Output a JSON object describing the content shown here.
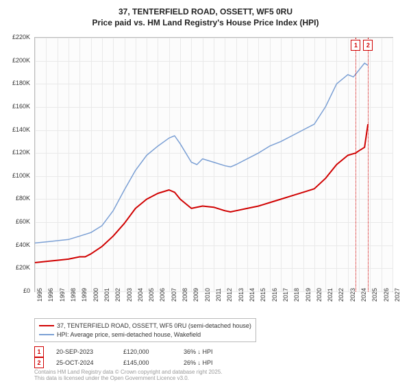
{
  "title_line1": "37, TENTERFIELD ROAD, OSSETT, WF5 0RU",
  "title_line2": "Price paid vs. HM Land Registry's House Price Index (HPI)",
  "chart": {
    "type": "line",
    "background_color": "#fcfcfc",
    "grid_color": "#e9e9e9",
    "border_color": "#bbbbbb",
    "x_range": [
      1995,
      2027
    ],
    "y_range": [
      0,
      220000
    ],
    "y_ticks": [
      0,
      20000,
      40000,
      60000,
      80000,
      100000,
      120000,
      140000,
      160000,
      180000,
      200000,
      220000
    ],
    "y_tick_labels": [
      "£0",
      "£20K",
      "£40K",
      "£60K",
      "£80K",
      "£100K",
      "£120K",
      "£140K",
      "£160K",
      "£180K",
      "£200K",
      "£220K"
    ],
    "x_ticks": [
      1995,
      1996,
      1997,
      1998,
      1999,
      2000,
      2001,
      2002,
      2003,
      2004,
      2005,
      2006,
      2007,
      2008,
      2009,
      2010,
      2011,
      2012,
      2013,
      2014,
      2015,
      2016,
      2017,
      2018,
      2019,
      2020,
      2021,
      2022,
      2023,
      2024,
      2025,
      2026,
      2027
    ],
    "series": [
      {
        "name": "price_paid",
        "label": "37, TENTERFIELD ROAD, OSSETT, WF5 0RU (semi-detached house)",
        "color": "#d00000",
        "line_width": 2,
        "data": [
          [
            1995,
            25000
          ],
          [
            1996,
            26000
          ],
          [
            1997,
            27000
          ],
          [
            1998,
            28000
          ],
          [
            1999,
            30000
          ],
          [
            1999.5,
            30000
          ],
          [
            2000,
            32500
          ],
          [
            2001,
            39000
          ],
          [
            2002,
            48000
          ],
          [
            2003,
            59000
          ],
          [
            2004,
            72000
          ],
          [
            2005,
            80000
          ],
          [
            2006,
            85000
          ],
          [
            2007,
            88000
          ],
          [
            2007.5,
            86000
          ],
          [
            2008,
            80000
          ],
          [
            2009,
            72000
          ],
          [
            2010,
            74000
          ],
          [
            2011,
            73000
          ],
          [
            2012,
            70000
          ],
          [
            2012.5,
            69000
          ],
          [
            2013,
            70000
          ],
          [
            2014,
            72000
          ],
          [
            2015,
            74000
          ],
          [
            2016,
            77000
          ],
          [
            2017,
            80000
          ],
          [
            2018,
            83000
          ],
          [
            2019,
            86000
          ],
          [
            2020,
            89000
          ],
          [
            2021,
            98000
          ],
          [
            2022,
            110000
          ],
          [
            2023,
            118000
          ],
          [
            2023.7,
            120000
          ],
          [
            2024,
            122000
          ],
          [
            2024.5,
            125000
          ],
          [
            2024.8,
            145000
          ]
        ]
      },
      {
        "name": "hpi",
        "label": "HPI: Average price, semi-detached house, Wakefield",
        "color": "#7a9fd4",
        "line_width": 1.5,
        "data": [
          [
            1995,
            42000
          ],
          [
            1996,
            43000
          ],
          [
            1997,
            44000
          ],
          [
            1998,
            45000
          ],
          [
            1999,
            48000
          ],
          [
            2000,
            51000
          ],
          [
            2001,
            57000
          ],
          [
            2002,
            70000
          ],
          [
            2003,
            88000
          ],
          [
            2004,
            105000
          ],
          [
            2005,
            118000
          ],
          [
            2006,
            126000
          ],
          [
            2007,
            133000
          ],
          [
            2007.5,
            135000
          ],
          [
            2008,
            128000
          ],
          [
            2009,
            112000
          ],
          [
            2009.5,
            110000
          ],
          [
            2010,
            115000
          ],
          [
            2011,
            112000
          ],
          [
            2012,
            109000
          ],
          [
            2012.5,
            108000
          ],
          [
            2013,
            110000
          ],
          [
            2014,
            115000
          ],
          [
            2015,
            120000
          ],
          [
            2016,
            126000
          ],
          [
            2017,
            130000
          ],
          [
            2018,
            135000
          ],
          [
            2019,
            140000
          ],
          [
            2020,
            145000
          ],
          [
            2021,
            160000
          ],
          [
            2022,
            180000
          ],
          [
            2023,
            188000
          ],
          [
            2023.5,
            186000
          ],
          [
            2024,
            192000
          ],
          [
            2024.5,
            198000
          ],
          [
            2024.8,
            196000
          ]
        ]
      }
    ],
    "markers": [
      {
        "n": "1",
        "x": 2023.72,
        "date": "20-SEP-2023",
        "price": "£120,000",
        "delta": "36% ↓ HPI"
      },
      {
        "n": "2",
        "x": 2024.82,
        "date": "25-OCT-2024",
        "price": "£145,000",
        "delta": "26% ↓ HPI"
      }
    ]
  },
  "footer_line1": "Contains HM Land Registry data © Crown copyright and database right 2025.",
  "footer_line2": "This data is licensed under the Open Government Licence v3.0."
}
